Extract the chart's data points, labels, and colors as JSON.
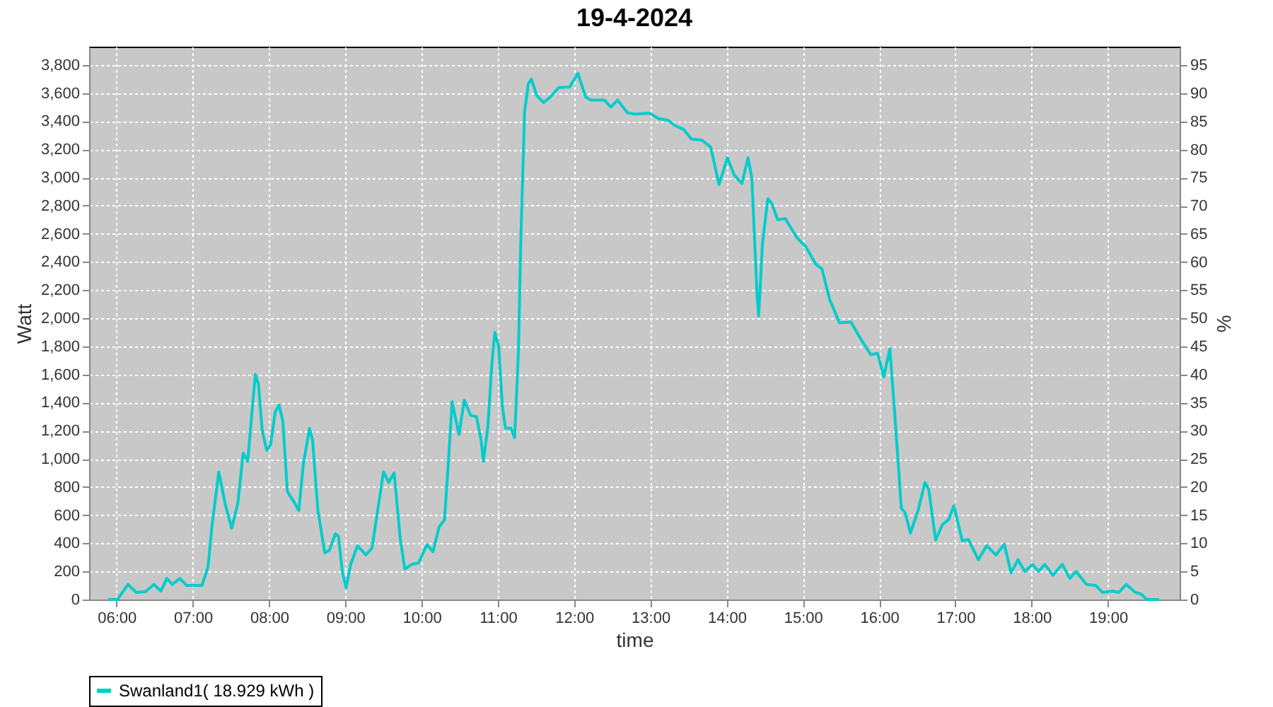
{
  "chart_data": {
    "type": "line",
    "title": "19-4-2024",
    "xlabel": "time",
    "ylabel": "Watt",
    "y2label": "%",
    "xlim": [
      5.64,
      19.94
    ],
    "ylim": [
      0,
      3930
    ],
    "y2lim": [
      0,
      98.3
    ],
    "xticks": [
      {
        "value": 6,
        "label": "06:00"
      },
      {
        "value": 7,
        "label": "07:00"
      },
      {
        "value": 8,
        "label": "08:00"
      },
      {
        "value": 9,
        "label": "09:00"
      },
      {
        "value": 10,
        "label": "10:00"
      },
      {
        "value": 11,
        "label": "11:00"
      },
      {
        "value": 12,
        "label": "12:00"
      },
      {
        "value": 13,
        "label": "13:00"
      },
      {
        "value": 14,
        "label": "14:00"
      },
      {
        "value": 15,
        "label": "15:00"
      },
      {
        "value": 16,
        "label": "16:00"
      },
      {
        "value": 17,
        "label": "17:00"
      },
      {
        "value": 18,
        "label": "18:00"
      },
      {
        "value": 19,
        "label": "19:00"
      }
    ],
    "yticks": [
      0,
      200,
      400,
      600,
      800,
      {
        "value": 1000,
        "label": "1,000"
      },
      {
        "value": 1200,
        "label": "1,200"
      },
      {
        "value": 1400,
        "label": "1,400"
      },
      {
        "value": 1600,
        "label": "1,600"
      },
      {
        "value": 1800,
        "label": "1,800"
      },
      {
        "value": 2000,
        "label": "2,000"
      },
      {
        "value": 2200,
        "label": "2,200"
      },
      {
        "value": 2400,
        "label": "2,400"
      },
      {
        "value": 2600,
        "label": "2,600"
      },
      {
        "value": 2800,
        "label": "2,800"
      },
      {
        "value": 3000,
        "label": "3,000"
      },
      {
        "value": 3200,
        "label": "3,200"
      },
      {
        "value": 3400,
        "label": "3,400"
      },
      {
        "value": 3600,
        "label": "3,600"
      },
      {
        "value": 3800,
        "label": "3,800"
      }
    ],
    "y2ticks": [
      0,
      5,
      10,
      15,
      20,
      25,
      30,
      35,
      40,
      45,
      50,
      55,
      60,
      65,
      70,
      75,
      80,
      85,
      90,
      95
    ],
    "grid": true,
    "legend": "bottom",
    "marker": "none",
    "line_style": "solid",
    "series": [
      {
        "name": "Swanland1( 18.929 kWh )",
        "color": "#00cccc",
        "x": [
          5.89,
          6.01,
          6.15,
          6.26,
          6.38,
          6.49,
          6.58,
          6.66,
          6.73,
          6.83,
          6.92,
          7.12,
          7.2,
          7.25,
          7.34,
          7.43,
          7.51,
          7.59,
          7.66,
          7.72,
          7.77,
          7.82,
          7.86,
          7.91,
          7.97,
          8.02,
          8.08,
          8.13,
          8.18,
          8.24,
          8.32,
          8.39,
          8.45,
          8.53,
          8.57,
          8.64,
          8.73,
          8.79,
          8.87,
          8.91,
          8.96,
          9.01,
          9.07,
          9.16,
          9.27,
          9.35,
          9.5,
          9.57,
          9.64,
          9.72,
          9.78,
          9.87,
          9.96,
          10.07,
          10.15,
          10.23,
          10.3,
          10.35,
          10.4,
          10.44,
          10.49,
          10.56,
          10.64,
          10.72,
          10.78,
          10.81,
          10.87,
          10.92,
          10.96,
          11.01,
          11.06,
          11.1,
          11.17,
          11.22,
          11.27,
          11.3,
          11.35,
          11.4,
          11.44,
          11.51,
          11.6,
          11.69,
          11.8,
          11.94,
          12.05,
          12.15,
          12.22,
          12.4,
          12.48,
          12.57,
          12.7,
          12.8,
          12.99,
          13.11,
          13.23,
          13.33,
          13.44,
          13.54,
          13.67,
          13.79,
          13.9,
          14.01,
          14.1,
          14.2,
          14.28,
          14.33,
          14.36,
          14.4,
          14.42,
          14.47,
          14.54,
          14.59,
          14.67,
          14.77,
          14.92,
          15.04,
          15.17,
          15.25,
          15.35,
          15.48,
          15.63,
          15.75,
          15.89,
          15.98,
          16.06,
          16.14,
          16.2,
          16.25,
          16.29,
          16.34,
          16.41,
          16.51,
          16.6,
          16.65,
          16.74,
          16.83,
          16.91,
          16.98,
          17.09,
          17.17,
          17.3,
          17.41,
          17.53,
          17.64,
          17.73,
          17.82,
          17.91,
          18.01,
          18.09,
          18.17,
          18.28,
          18.4,
          18.5,
          18.58,
          18.72,
          18.84,
          18.93,
          19.06,
          19.14,
          19.24,
          19.36,
          19.43,
          19.51,
          19.67
        ],
        "values": [
          0,
          0,
          107,
          50,
          57,
          107,
          60,
          150,
          107,
          150,
          100,
          100,
          233,
          517,
          907,
          667,
          507,
          683,
          1040,
          983,
          1300,
          1600,
          1533,
          1200,
          1060,
          1100,
          1333,
          1383,
          1267,
          767,
          700,
          633,
          967,
          1217,
          1133,
          633,
          333,
          350,
          467,
          450,
          200,
          83,
          250,
          383,
          317,
          367,
          907,
          833,
          900,
          433,
          217,
          250,
          260,
          390,
          340,
          517,
          567,
          967,
          1407,
          1300,
          1173,
          1417,
          1310,
          1300,
          1133,
          983,
          1233,
          1667,
          1900,
          1800,
          1367,
          1217,
          1217,
          1150,
          1767,
          2533,
          3467,
          3667,
          3700,
          3583,
          3533,
          3573,
          3640,
          3643,
          3740,
          3573,
          3550,
          3550,
          3500,
          3550,
          3460,
          3450,
          3457,
          3417,
          3407,
          3367,
          3340,
          3273,
          3267,
          3217,
          2950,
          3140,
          3017,
          2957,
          3140,
          3000,
          2633,
          2150,
          2017,
          2533,
          2850,
          2817,
          2700,
          2707,
          2573,
          2507,
          2383,
          2350,
          2133,
          1967,
          1973,
          1860,
          1740,
          1750,
          1583,
          1783,
          1350,
          967,
          650,
          617,
          473,
          633,
          833,
          783,
          423,
          533,
          567,
          667,
          417,
          427,
          283,
          383,
          317,
          393,
          190,
          283,
          200,
          250,
          200,
          250,
          173,
          250,
          150,
          200,
          107,
          100,
          50,
          60,
          50,
          107,
          50,
          40,
          0,
          0
        ]
      }
    ]
  }
}
